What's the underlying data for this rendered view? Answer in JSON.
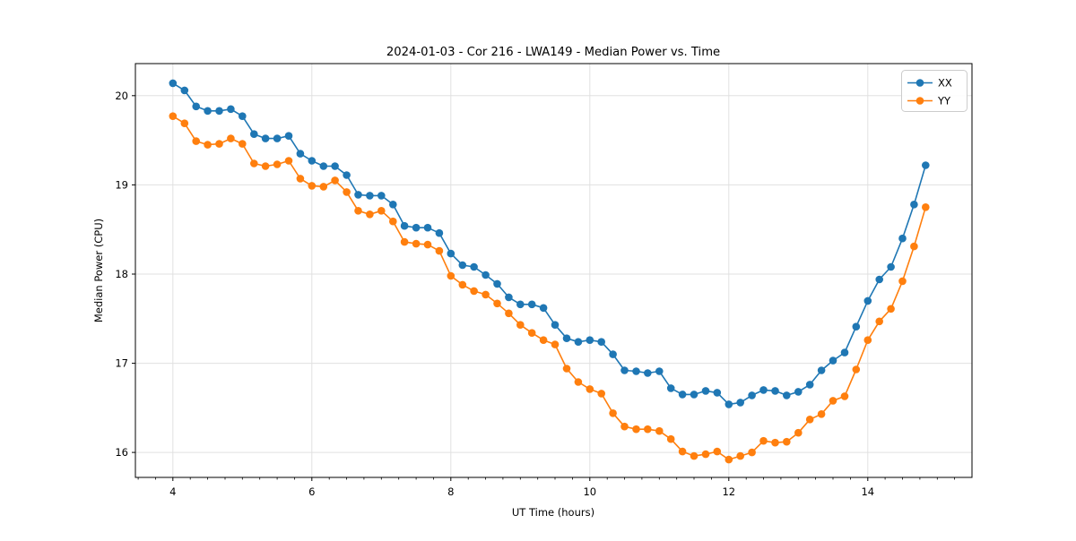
{
  "figure": {
    "background": "#ffffff",
    "plot_border_color": "#000000",
    "grid_color": "#e0e0e0"
  },
  "chart_data": {
    "type": "line",
    "title": "2024-01-03 - Cor 216 - LWA149 - Median Power vs. Time",
    "xlabel": "UT Time (hours)",
    "ylabel": "Median Power (CPU)",
    "xlim": [
      3.46,
      15.5
    ],
    "ylim": [
      15.72,
      20.36
    ],
    "x_ticks": [
      4,
      6,
      8,
      10,
      12,
      14
    ],
    "y_ticks": [
      16,
      17,
      18,
      19,
      20
    ],
    "x_minor_step": 0.25,
    "grid": "major-only",
    "legend_position": "upper-right",
    "marker": "circle",
    "x": [
      4,
      4.167,
      4.333,
      4.5,
      4.667,
      4.833,
      5,
      5.167,
      5.333,
      5.5,
      5.667,
      5.833,
      6,
      6.167,
      6.333,
      6.5,
      6.667,
      6.833,
      7,
      7.167,
      7.333,
      7.5,
      7.667,
      7.833,
      8,
      8.167,
      8.333,
      8.5,
      8.667,
      8.833,
      9,
      9.167,
      9.333,
      9.5,
      9.667,
      9.833,
      10,
      10.167,
      10.333,
      10.5,
      10.667,
      10.833,
      11,
      11.167,
      11.333,
      11.5,
      11.667,
      11.833,
      12,
      12.167,
      12.333,
      12.5,
      12.667,
      12.833,
      13,
      13.167,
      13.333,
      13.5,
      13.667,
      13.833,
      14,
      14.167,
      14.333,
      14.5,
      14.667,
      14.833
    ],
    "series": [
      {
        "name": "XX",
        "color": "#1f77b4",
        "values": [
          20.14,
          20.06,
          19.88,
          19.83,
          19.83,
          19.85,
          19.77,
          19.57,
          19.52,
          19.52,
          19.55,
          19.35,
          19.27,
          19.21,
          19.21,
          19.11,
          18.89,
          18.88,
          18.88,
          18.78,
          18.54,
          18.52,
          18.52,
          18.46,
          18.23,
          18.1,
          18.08,
          17.99,
          17.89,
          17.74,
          17.66,
          17.66,
          17.62,
          17.43,
          17.28,
          17.24,
          17.26,
          17.24,
          17.1,
          16.92,
          16.91,
          16.89,
          16.91,
          16.72,
          16.65,
          16.65,
          16.69,
          16.67,
          16.54,
          16.56,
          16.64,
          16.7,
          16.69,
          16.64,
          16.68,
          16.76,
          16.92,
          17.03,
          17.12,
          17.41,
          17.7,
          17.94,
          18.08,
          18.4,
          18.78,
          19.22
        ]
      },
      {
        "name": "YY",
        "color": "#ff7f0e",
        "values": [
          19.77,
          19.69,
          19.49,
          19.45,
          19.46,
          19.52,
          19.46,
          19.24,
          19.21,
          19.23,
          19.27,
          19.07,
          18.99,
          18.98,
          19.05,
          18.92,
          18.71,
          18.67,
          18.71,
          18.59,
          18.36,
          18.34,
          18.33,
          18.26,
          17.98,
          17.88,
          17.81,
          17.77,
          17.67,
          17.56,
          17.43,
          17.34,
          17.26,
          17.21,
          16.94,
          16.79,
          16.71,
          16.66,
          16.44,
          16.29,
          16.26,
          16.26,
          16.24,
          16.15,
          16.01,
          15.96,
          15.98,
          16.01,
          15.92,
          15.96,
          16.0,
          16.13,
          16.11,
          16.12,
          16.22,
          16.37,
          16.43,
          16.58,
          16.63,
          16.93,
          17.26,
          17.47,
          17.61,
          17.92,
          18.31,
          18.75
        ]
      }
    ]
  }
}
